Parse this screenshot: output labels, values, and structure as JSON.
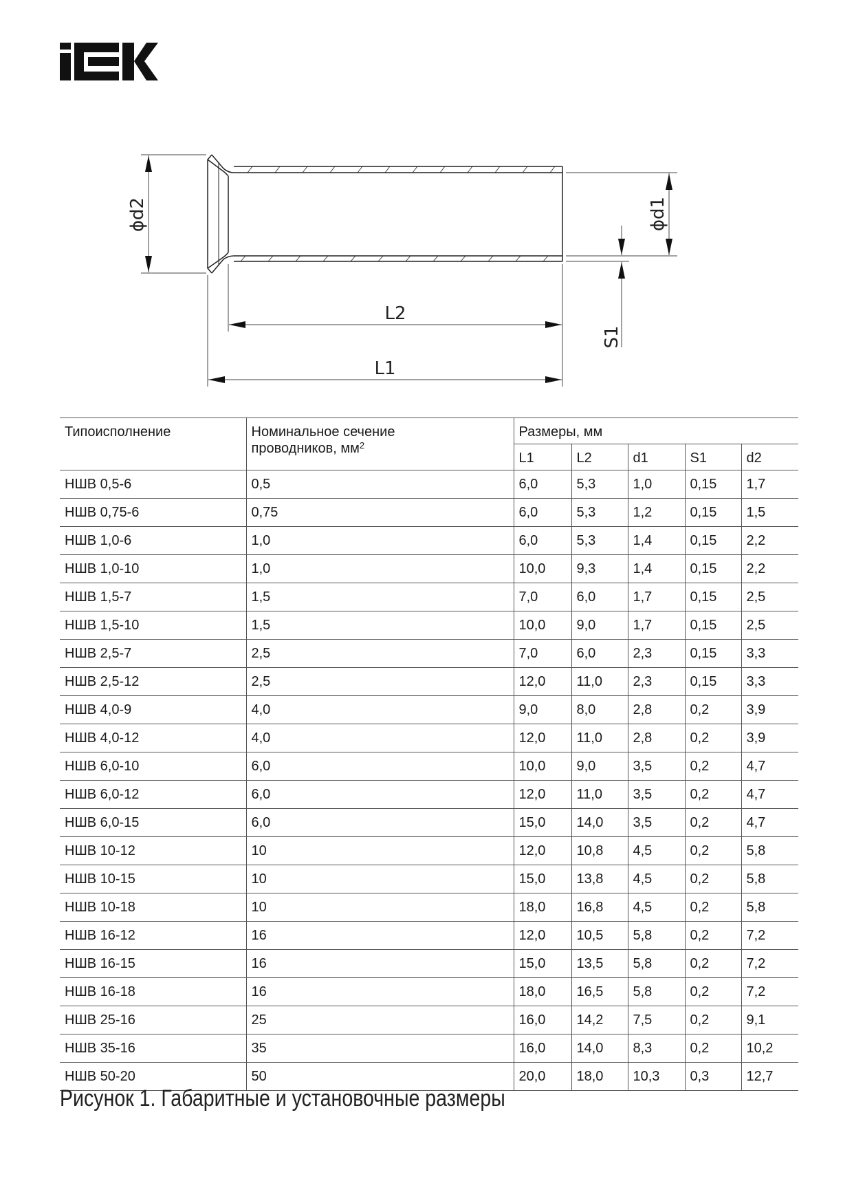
{
  "logo": {
    "text": "IEK",
    "color": "#111111"
  },
  "drawing": {
    "labels": {
      "d2": "ϕd2",
      "d1": "ϕd1",
      "L1": "L1",
      "L2": "L2",
      "S1": "S1"
    }
  },
  "table": {
    "headers": {
      "type": "Типоисполнение",
      "section_line1": "Номинальное сечение",
      "section_line2": "проводников, мм",
      "section_sup": "2",
      "dims": "Размеры, мм",
      "sub": [
        "L1",
        "L2",
        "d1",
        "S1",
        "d2"
      ]
    },
    "rows": [
      [
        "НШВ 0,5-6",
        "0,5",
        "6,0",
        "5,3",
        "1,0",
        "0,15",
        "1,7"
      ],
      [
        "НШВ 0,75-6",
        "0,75",
        "6,0",
        "5,3",
        "1,2",
        "0,15",
        "1,5"
      ],
      [
        "НШВ 1,0-6",
        "1,0",
        "6,0",
        "5,3",
        "1,4",
        "0,15",
        "2,2"
      ],
      [
        "НШВ 1,0-10",
        "1,0",
        "10,0",
        "9,3",
        "1,4",
        "0,15",
        "2,2"
      ],
      [
        "НШВ 1,5-7",
        "1,5",
        "7,0",
        "6,0",
        "1,7",
        "0,15",
        "2,5"
      ],
      [
        "НШВ 1,5-10",
        "1,5",
        "10,0",
        "9,0",
        "1,7",
        "0,15",
        "2,5"
      ],
      [
        "НШВ 2,5-7",
        "2,5",
        "7,0",
        "6,0",
        "2,3",
        "0,15",
        "3,3"
      ],
      [
        "НШВ 2,5-12",
        "2,5",
        "12,0",
        "11,0",
        "2,3",
        "0,15",
        "3,3"
      ],
      [
        "НШВ 4,0-9",
        "4,0",
        "9,0",
        "8,0",
        "2,8",
        "0,2",
        "3,9"
      ],
      [
        "НШВ 4,0-12",
        "4,0",
        "12,0",
        "11,0",
        "2,8",
        "0,2",
        "3,9"
      ],
      [
        "НШВ 6,0-10",
        "6,0",
        "10,0",
        "9,0",
        "3,5",
        "0,2",
        "4,7"
      ],
      [
        "НШВ 6,0-12",
        "6,0",
        "12,0",
        "11,0",
        "3,5",
        "0,2",
        "4,7"
      ],
      [
        "НШВ 6,0-15",
        "6,0",
        "15,0",
        "14,0",
        "3,5",
        "0,2",
        "4,7"
      ],
      [
        "НШВ 10-12",
        "10",
        "12,0",
        "10,8",
        "4,5",
        "0,2",
        "5,8"
      ],
      [
        "НШВ 10-15",
        "10",
        "15,0",
        "13,8",
        "4,5",
        "0,2",
        "5,8"
      ],
      [
        "НШВ 10-18",
        "10",
        "18,0",
        "16,8",
        "4,5",
        "0,2",
        "5,8"
      ],
      [
        "НШВ 16-12",
        "16",
        "12,0",
        "10,5",
        "5,8",
        "0,2",
        "7,2"
      ],
      [
        "НШВ 16-15",
        "16",
        "15,0",
        "13,5",
        "5,8",
        "0,2",
        "7,2"
      ],
      [
        "НШВ 16-18",
        "16",
        "18,0",
        "16,5",
        "5,8",
        "0,2",
        "7,2"
      ],
      [
        "НШВ 25-16",
        "25",
        "16,0",
        "14,2",
        "7,5",
        "0,2",
        "9,1"
      ],
      [
        "НШВ 35-16",
        "35",
        "16,0",
        "14,0",
        "8,3",
        "0,2",
        "10,2"
      ],
      [
        "НШВ 50-20",
        "50",
        "20,0",
        "18,0",
        "10,3",
        "0,3",
        "12,7"
      ]
    ]
  },
  "caption": "Рисунок 1. Габаритные и установочные размеры"
}
